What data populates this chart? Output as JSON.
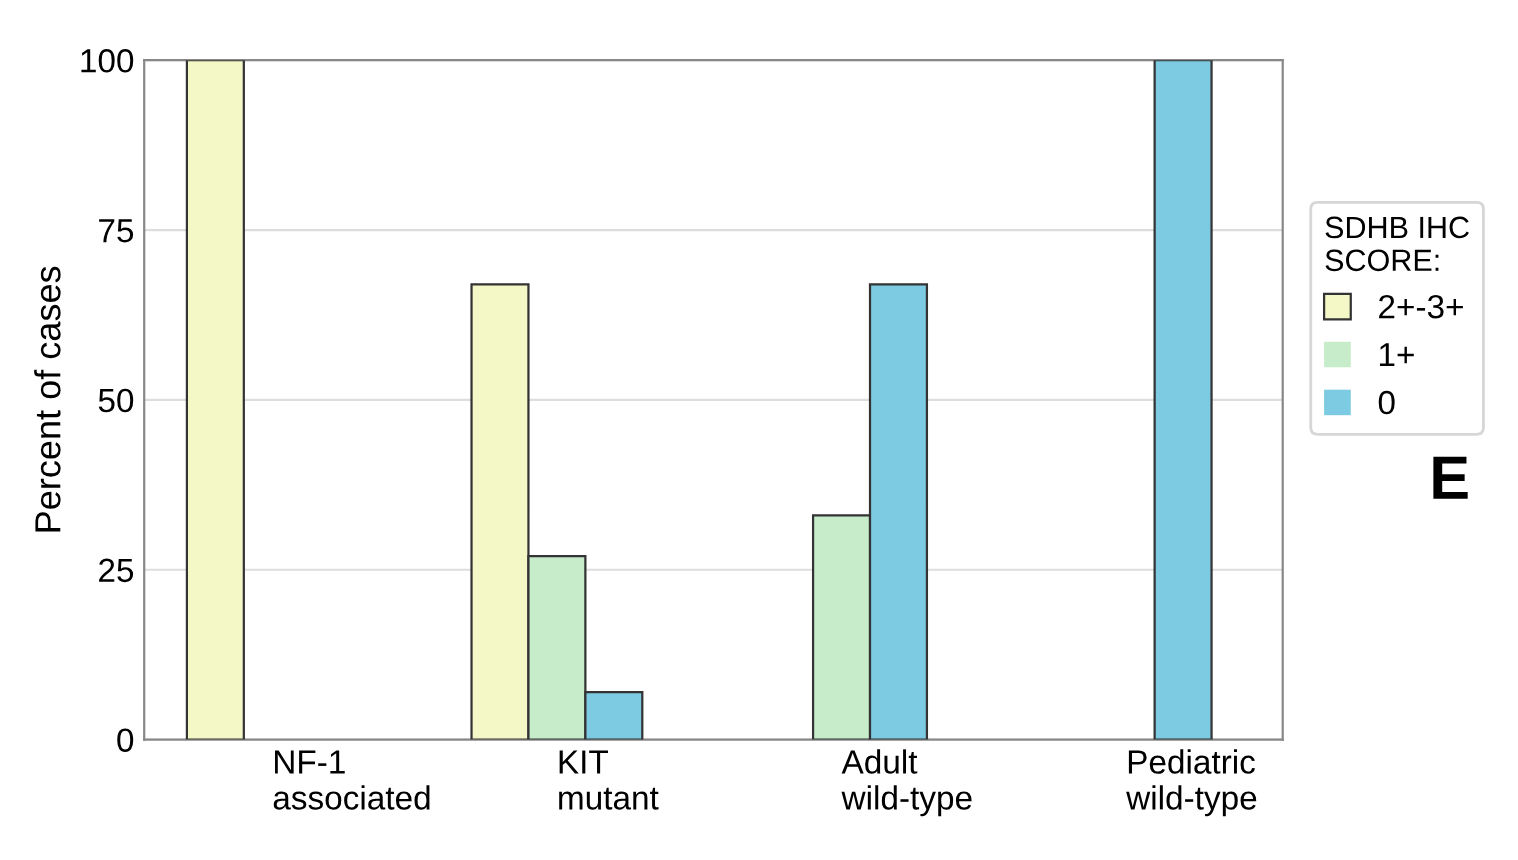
{
  "chart_data": {
    "type": "bar",
    "ylabel": "Percent of cases",
    "categories": [
      "NF-1\nassociated",
      "KIT\nmutant",
      "Adult\nwild-type",
      "Pediatric\nwild-type"
    ],
    "series": [
      {
        "name": "2+-3+",
        "color": "#f4f8c6",
        "values": [
          100,
          67,
          0,
          0
        ]
      },
      {
        "name": "1+",
        "color": "#c6ecca",
        "values": [
          0,
          27,
          33,
          0
        ]
      },
      {
        "name": "0",
        "color": "#7ccbe2",
        "values": [
          0,
          7,
          67,
          100
        ]
      }
    ],
    "ylim": [
      0,
      100
    ],
    "yticks": [
      0,
      25,
      50,
      75,
      100
    ],
    "grid": "y",
    "legend": "right",
    "legend_title": "SDHB IHC\nSCORE:",
    "annotations": [
      "E"
    ]
  }
}
